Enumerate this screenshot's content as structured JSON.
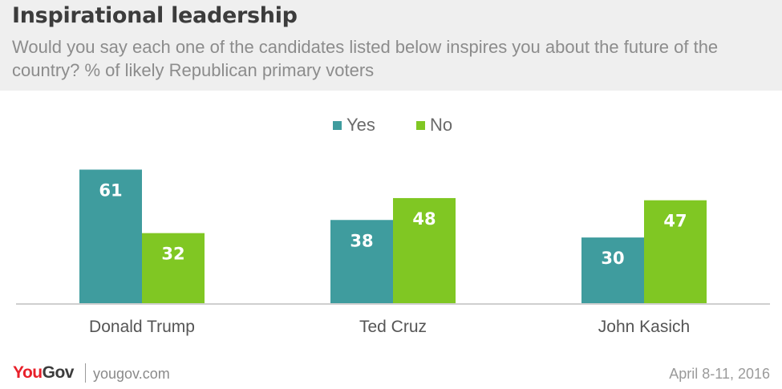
{
  "header": {
    "title": "Inspirational leadership",
    "subtitle": "Would you say each one of the candidates listed below inspires you about the future of the country? % of likely Republican primary voters"
  },
  "chart_data": {
    "type": "bar",
    "title": "Inspirational leadership",
    "subtitle": "Would you say each one of the candidates listed below inspires you about the future of the country? % of likely Republican primary voters",
    "categories": [
      "Donald Trump",
      "Ted Cruz",
      "John Kasich"
    ],
    "series": [
      {
        "name": "Yes",
        "color": "#3f9c9e",
        "values": [
          61,
          38,
          30
        ]
      },
      {
        "name": "No",
        "color": "#80c723",
        "values": [
          32,
          48,
          47
        ]
      }
    ],
    "ylim": [
      0,
      70
    ],
    "grid": false,
    "legend_position": "top-center",
    "data_labels": true
  },
  "footer": {
    "brand_you": "You",
    "brand_gov": "Gov",
    "site": "yougov.com",
    "date": "April 8-11, 2016"
  },
  "colors": {
    "brand_red": "#e8202a",
    "brand_gray": "#3c3c3c",
    "yes": "#3f9c9e",
    "no": "#80c723"
  }
}
